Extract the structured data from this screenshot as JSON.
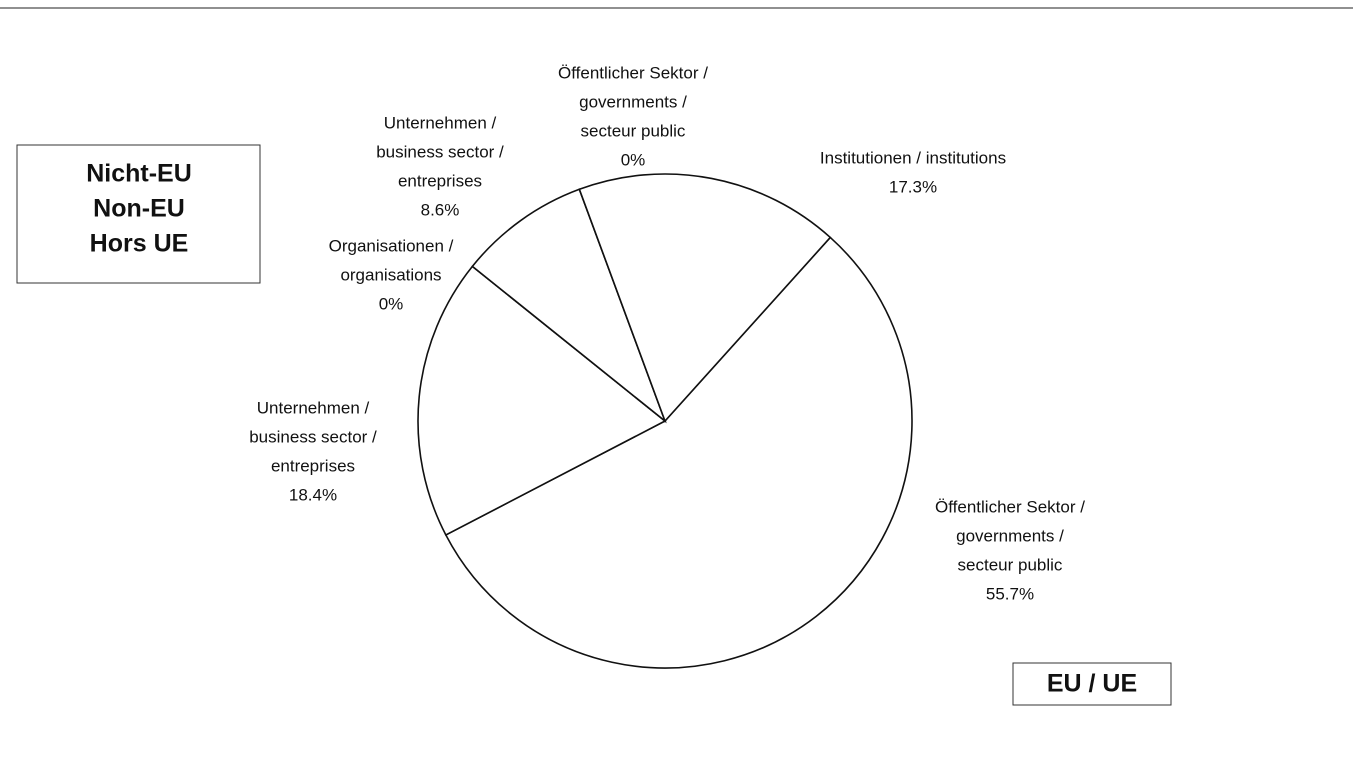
{
  "chart_data": {
    "type": "pie",
    "categories": [
      [
        "Öffentlicher Sektor /",
        "governments /",
        "secteur public"
      ],
      [
        "Unternehmen /",
        "business sector /",
        "entreprises"
      ],
      [
        "Organisationen /",
        "organisations"
      ],
      [
        "Unternehmen /",
        "business sector /",
        "entreprises"
      ],
      [
        "Öffentlicher Sektor /",
        "governments /",
        "secteur public"
      ],
      [
        "Institutionen / institutions"
      ]
    ],
    "values": [
      55.7,
      18.4,
      0,
      8.6,
      0,
      17.3
    ],
    "value_labels": [
      "55.7%",
      "18.4%",
      "0%",
      "8.6%",
      "0%",
      "17.3%"
    ],
    "color": "#ffffff",
    "annotations": [
      [
        "Nicht-EU",
        "Non-EU",
        "Hors UE"
      ],
      [
        "EU / UE"
      ]
    ]
  }
}
